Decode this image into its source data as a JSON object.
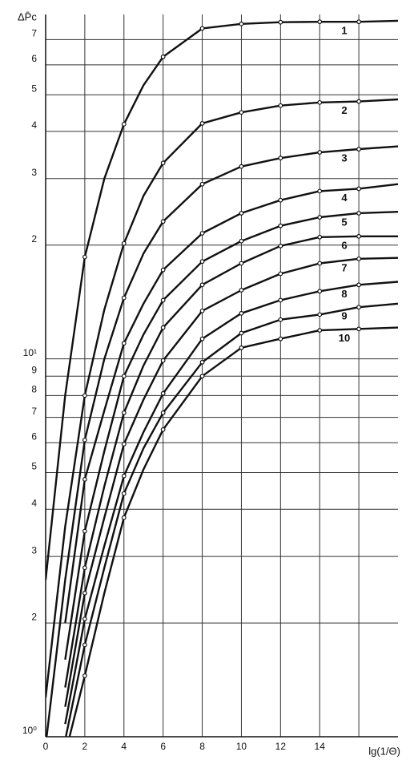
{
  "chart_data": {
    "type": "line",
    "y_label": "ΔP̄c",
    "x_label": "lg(1/Θ)",
    "x": [
      0,
      1,
      2,
      3,
      4,
      5,
      6,
      8,
      10,
      12,
      14,
      16,
      18
    ],
    "series": [
      {
        "name": "1",
        "color": "#111111",
        "values": [
          2.6,
          8,
          18.6,
          30,
          41.8,
          53,
          63,
          74.9,
          77,
          77.8,
          78,
          78,
          78.5
        ]
      },
      {
        "name": "2",
        "color": "#111111",
        "values": [
          1.27,
          3.6,
          8.0,
          13.5,
          20.2,
          27,
          33,
          42,
          44.9,
          46.8,
          47.7,
          48,
          48.6
        ]
      },
      {
        "name": "3",
        "color": "#111111",
        "values": [
          0.95,
          2.6,
          6.1,
          10,
          14.5,
          19,
          23.1,
          29,
          32.3,
          34,
          35.2,
          35.9,
          36.5
        ]
      },
      {
        "name": "4",
        "color": "#111111",
        "values": [
          null,
          2.0,
          4.8,
          7.3,
          11,
          14,
          17.2,
          21.5,
          24.3,
          26.3,
          27.8,
          28.2,
          29
        ]
      },
      {
        "name": "5",
        "color": "#111111",
        "values": [
          null,
          1.6,
          3.5,
          5.7,
          9.0,
          11.6,
          14.3,
          18.1,
          20.5,
          22.5,
          23.7,
          24.3,
          24.5
        ]
      },
      {
        "name": "6",
        "color": "#111111",
        "values": [
          null,
          1.35,
          2.8,
          4.6,
          7.2,
          9.6,
          12.1,
          15.7,
          17.9,
          19.9,
          21,
          21.1,
          21.1
        ]
      },
      {
        "name": "7",
        "color": "#111111",
        "values": [
          null,
          1.2,
          2.4,
          3.8,
          5.95,
          7.8,
          9.9,
          13.4,
          15.2,
          16.8,
          17.9,
          18.4,
          18.5
        ]
      },
      {
        "name": "8",
        "color": "#111111",
        "values": [
          null,
          1.08,
          2.05,
          3.2,
          4.9,
          6.4,
          8.1,
          11.3,
          13.2,
          14.3,
          15.1,
          15.7,
          16
        ]
      },
      {
        "name": "9",
        "color": "#111111",
        "values": [
          null,
          0.98,
          1.75,
          2.8,
          4.4,
          5.8,
          7.2,
          9.8,
          11.7,
          12.7,
          13.1,
          13.7,
          14
        ]
      },
      {
        "name": "10",
        "color": "#111111",
        "values": [
          null,
          0.9,
          1.45,
          2.4,
          3.8,
          5.1,
          6.5,
          9.0,
          10.7,
          11.3,
          11.9,
          12.0,
          12.1
        ]
      }
    ],
    "xlim": [
      0,
      18
    ],
    "xticks": [
      0,
      2,
      4,
      6,
      8,
      10,
      12,
      14,
      {
        "value": 16,
        "label": null
      }
    ],
    "ylim": [
      1,
      80
    ],
    "yticks": [
      {
        "value": 1,
        "label": "10⁰"
      },
      2,
      3,
      4,
      5,
      6,
      7,
      8,
      9,
      {
        "value": 10,
        "label": "10¹"
      },
      {
        "value": 20,
        "label": "2"
      },
      {
        "value": 30,
        "label": "3"
      },
      {
        "value": 40,
        "label": "4"
      },
      {
        "value": 50,
        "label": "5"
      },
      {
        "value": 60,
        "label": "6"
      },
      {
        "value": 70,
        "label": "7"
      }
    ],
    "y_log": true,
    "grid": true
  }
}
